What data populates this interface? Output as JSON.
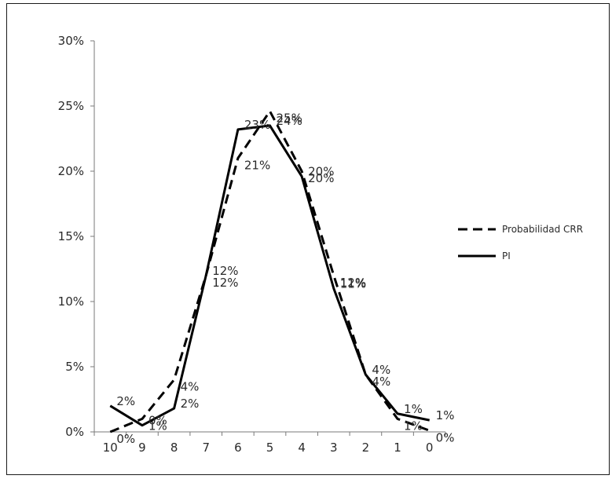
{
  "chart_data": {
    "type": "line",
    "categories": [
      "10",
      "9",
      "8",
      "7",
      "6",
      "5",
      "4",
      "3",
      "2",
      "1",
      "0"
    ],
    "ylim": [
      0,
      0.3
    ],
    "yticks": [
      0,
      0.05,
      0.1,
      0.15,
      0.2,
      0.25,
      0.3
    ],
    "ytick_labels": [
      "0%",
      "5%",
      "10%",
      "15%",
      "20%",
      "25%",
      "30%"
    ],
    "grid": false,
    "legend_position": "right",
    "series": [
      {
        "name": "Probabilidad CRR",
        "style": "dashed",
        "color": "#000000",
        "values": [
          0.0,
          0.01,
          0.04,
          0.12,
          0.21,
          0.246,
          0.2,
          0.12,
          0.044,
          0.01,
          0.001
        ],
        "labels": [
          "0%",
          "1%",
          "4%",
          "12%",
          "21%",
          "25%",
          "20%",
          "12%",
          "4%",
          "1%",
          "0%"
        ]
      },
      {
        "name": "PI",
        "style": "solid",
        "color": "#000000",
        "values": [
          0.02,
          0.005,
          0.018,
          0.12,
          0.232,
          0.235,
          0.196,
          0.11,
          0.044,
          0.014,
          0.009
        ],
        "labels": [
          "2%",
          "0%",
          "2%",
          "12%",
          "23%",
          "24%",
          "20%",
          "11%",
          "4%",
          "1%",
          "1%"
        ]
      }
    ]
  }
}
